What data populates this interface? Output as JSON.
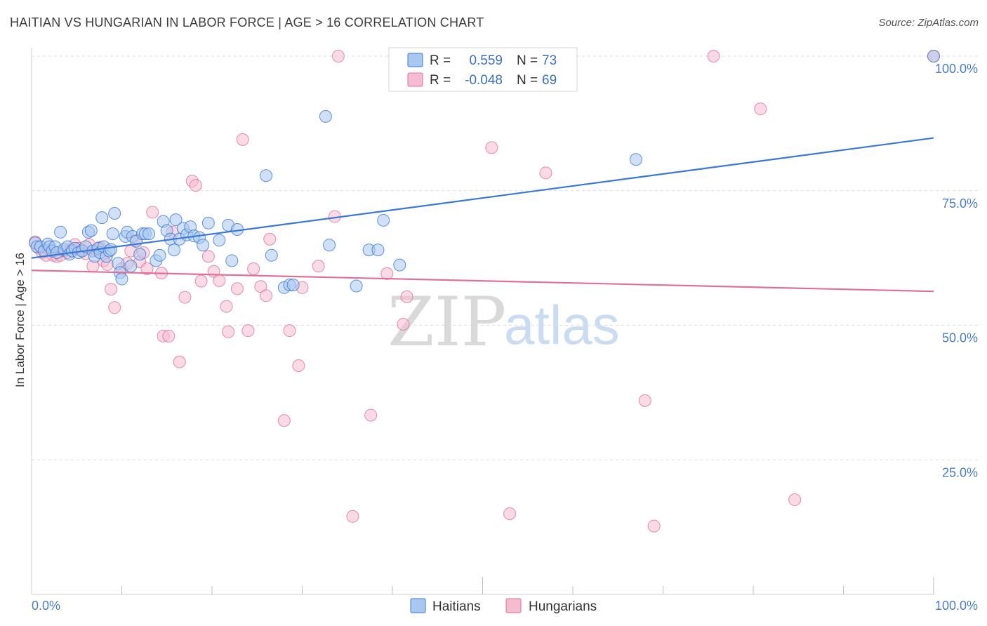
{
  "title": "HAITIAN VS HUNGARIAN IN LABOR FORCE | AGE > 16 CORRELATION CHART",
  "source": "Source: ZipAtlas.com",
  "watermark": {
    "zip": "ZIP",
    "atlas": "atlas"
  },
  "colors": {
    "haitians": "#3a78d6",
    "hungarians": "#e07098",
    "haitians_fill": "#a9c8f0",
    "hungarians_fill": "#f5bcd0",
    "axis_text": "#4a7cc9"
  },
  "legend": {
    "haitians": {
      "r_label": "R =",
      "r_value": "0.559",
      "n_label": "N =",
      "n_value": "73"
    },
    "hungarians": {
      "r_label": "R =",
      "r_value": "-0.048",
      "n_label": "N =",
      "n_value": "69"
    }
  },
  "bottom_legend": {
    "haitians": "Haitians",
    "hungarians": "Hungarians"
  },
  "chart_data": {
    "type": "scatter",
    "ylabel": "In Labor Force | Age > 16",
    "xlim": [
      0,
      100
    ],
    "ylim": [
      0,
      105
    ],
    "x_tick_labels": [
      "0.0%",
      "100.0%"
    ],
    "y_ticks": [
      25,
      50,
      75,
      100
    ],
    "y_tick_labels": [
      "25.0%",
      "50.0%",
      "75.0%",
      "100.0%"
    ],
    "grid": true,
    "legend_position": "top-center",
    "series": [
      {
        "name": "Haitians",
        "trend": [
          [
            0,
            62.5
          ],
          [
            100,
            84.8
          ]
        ],
        "points": [
          [
            0.4,
            65.3
          ],
          [
            0.6,
            64.6
          ],
          [
            1.0,
            64.6
          ],
          [
            1.4,
            63.8
          ],
          [
            1.8,
            65.1
          ],
          [
            2.0,
            64.6
          ],
          [
            2.3,
            63.8
          ],
          [
            2.6,
            64.6
          ],
          [
            2.8,
            63.5
          ],
          [
            3.2,
            67.3
          ],
          [
            3.6,
            64.1
          ],
          [
            4.0,
            64.6
          ],
          [
            4.2,
            63.2
          ],
          [
            4.5,
            63.8
          ],
          [
            4.8,
            64.3
          ],
          [
            5.2,
            63.5
          ],
          [
            5.6,
            63.8
          ],
          [
            6.0,
            64.6
          ],
          [
            6.3,
            67.3
          ],
          [
            6.6,
            67.6
          ],
          [
            6.8,
            63.8
          ],
          [
            7.0,
            62.8
          ],
          [
            7.4,
            64.3
          ],
          [
            7.6,
            63.5
          ],
          [
            7.8,
            70.0
          ],
          [
            8.0,
            64.6
          ],
          [
            8.3,
            62.8
          ],
          [
            8.6,
            63.8
          ],
          [
            8.8,
            64.1
          ],
          [
            9.0,
            67.0
          ],
          [
            9.2,
            70.8
          ],
          [
            9.6,
            61.5
          ],
          [
            9.8,
            59.8
          ],
          [
            10.0,
            58.6
          ],
          [
            10.4,
            66.5
          ],
          [
            10.6,
            67.3
          ],
          [
            11.0,
            61.0
          ],
          [
            11.2,
            66.5
          ],
          [
            11.6,
            65.6
          ],
          [
            12.0,
            63.2
          ],
          [
            12.3,
            67.0
          ],
          [
            12.6,
            67.0
          ],
          [
            13.0,
            67.0
          ],
          [
            13.8,
            62.0
          ],
          [
            14.2,
            63.0
          ],
          [
            14.6,
            69.3
          ],
          [
            15.0,
            67.6
          ],
          [
            15.4,
            66.0
          ],
          [
            15.8,
            64.0
          ],
          [
            16.0,
            69.6
          ],
          [
            16.4,
            66.0
          ],
          [
            16.8,
            68.0
          ],
          [
            17.2,
            66.8
          ],
          [
            17.6,
            68.3
          ],
          [
            18.0,
            66.6
          ],
          [
            18.6,
            66.3
          ],
          [
            19.0,
            64.9
          ],
          [
            19.6,
            69.0
          ],
          [
            20.8,
            65.8
          ],
          [
            21.8,
            68.6
          ],
          [
            22.2,
            62.0
          ],
          [
            22.8,
            67.8
          ],
          [
            26.0,
            77.8
          ],
          [
            26.6,
            63.0
          ],
          [
            28.0,
            57.0
          ],
          [
            28.6,
            57.5
          ],
          [
            29.0,
            57.5
          ],
          [
            32.6,
            88.8
          ],
          [
            33.0,
            64.9
          ],
          [
            36.0,
            57.3
          ],
          [
            37.4,
            64.0
          ],
          [
            38.4,
            64.0
          ],
          [
            39.0,
            69.5
          ],
          [
            40.8,
            61.2
          ],
          [
            67.0,
            80.8
          ],
          [
            100.0,
            100.0
          ]
        ]
      },
      {
        "name": "Hungarians",
        "trend": [
          [
            0,
            60.2
          ],
          [
            100,
            56.3
          ]
        ],
        "points": [
          [
            0.4,
            65.5
          ],
          [
            0.8,
            64.3
          ],
          [
            1.2,
            63.5
          ],
          [
            1.6,
            63.0
          ],
          [
            2.0,
            64.0
          ],
          [
            2.4,
            63.0
          ],
          [
            2.8,
            62.8
          ],
          [
            3.2,
            63.0
          ],
          [
            3.6,
            63.8
          ],
          [
            4.0,
            63.5
          ],
          [
            4.4,
            64.0
          ],
          [
            4.8,
            65.0
          ],
          [
            5.2,
            64.3
          ],
          [
            5.6,
            64.0
          ],
          [
            6.0,
            63.3
          ],
          [
            6.4,
            65.0
          ],
          [
            6.8,
            61.0
          ],
          [
            7.2,
            64.0
          ],
          [
            7.6,
            64.5
          ],
          [
            8.0,
            62.0
          ],
          [
            8.4,
            61.3
          ],
          [
            8.8,
            56.7
          ],
          [
            9.2,
            53.3
          ],
          [
            10.0,
            60.5
          ],
          [
            10.6,
            61.5
          ],
          [
            11.0,
            63.8
          ],
          [
            11.6,
            65.8
          ],
          [
            12.0,
            61.8
          ],
          [
            12.4,
            63.5
          ],
          [
            12.8,
            60.5
          ],
          [
            13.4,
            71.0
          ],
          [
            14.4,
            59.7
          ],
          [
            14.6,
            48.0
          ],
          [
            15.2,
            48.0
          ],
          [
            15.6,
            67.3
          ],
          [
            16.4,
            43.2
          ],
          [
            17.0,
            55.2
          ],
          [
            17.8,
            76.8
          ],
          [
            18.2,
            76.0
          ],
          [
            18.8,
            58.2
          ],
          [
            19.6,
            62.8
          ],
          [
            20.2,
            60.0
          ],
          [
            20.8,
            58.3
          ],
          [
            21.6,
            53.5
          ],
          [
            21.8,
            48.8
          ],
          [
            22.8,
            56.8
          ],
          [
            23.4,
            84.5
          ],
          [
            24.0,
            49.0
          ],
          [
            24.6,
            60.5
          ],
          [
            25.4,
            57.2
          ],
          [
            26.0,
            55.5
          ],
          [
            26.4,
            66.0
          ],
          [
            28.0,
            32.3
          ],
          [
            28.6,
            49.0
          ],
          [
            29.6,
            42.5
          ],
          [
            30.0,
            57.0
          ],
          [
            31.8,
            61.0
          ],
          [
            33.6,
            70.2
          ],
          [
            34.0,
            100.0
          ],
          [
            35.6,
            14.5
          ],
          [
            37.6,
            33.3
          ],
          [
            39.4,
            59.6
          ],
          [
            41.2,
            50.2
          ],
          [
            41.6,
            55.3
          ],
          [
            51.0,
            83.0
          ],
          [
            53.0,
            15.0
          ],
          [
            57.0,
            78.3
          ],
          [
            68.0,
            36.0
          ],
          [
            69.0,
            12.7
          ],
          [
            75.6,
            100.0
          ],
          [
            80.8,
            90.2
          ],
          [
            84.6,
            17.6
          ],
          [
            100.0,
            100.0
          ]
        ]
      }
    ]
  }
}
